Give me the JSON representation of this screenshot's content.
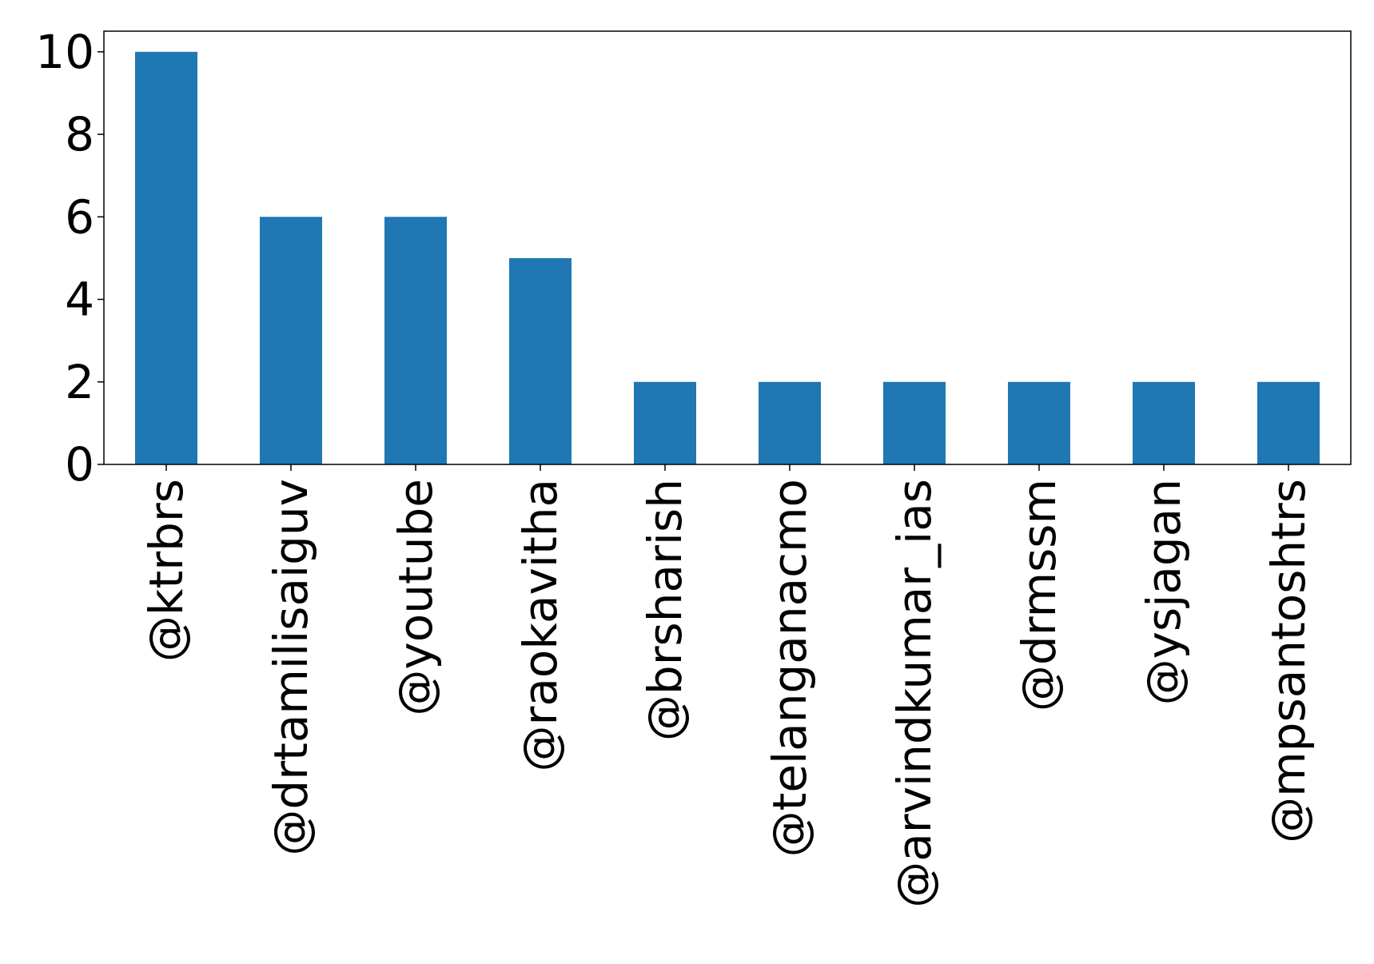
{
  "chart_data": {
    "type": "bar",
    "categories": [
      "@ktrbrs",
      "@drtamilisaiguv",
      "@youtube",
      "@raokavitha",
      "@brsharish",
      "@telanganacmo",
      "@arvindkumar_ias",
      "@drmssm",
      "@ysjagan",
      "@mpsantoshtrs"
    ],
    "values": [
      10,
      6,
      6,
      5,
      2,
      2,
      2,
      2,
      2,
      2
    ],
    "title": "",
    "xlabel": "",
    "ylabel": "",
    "ylim": [
      0,
      10.5
    ],
    "yticks": [
      0,
      2,
      4,
      6,
      8,
      10
    ],
    "grid": false,
    "bar_color": "#1f77b4"
  }
}
